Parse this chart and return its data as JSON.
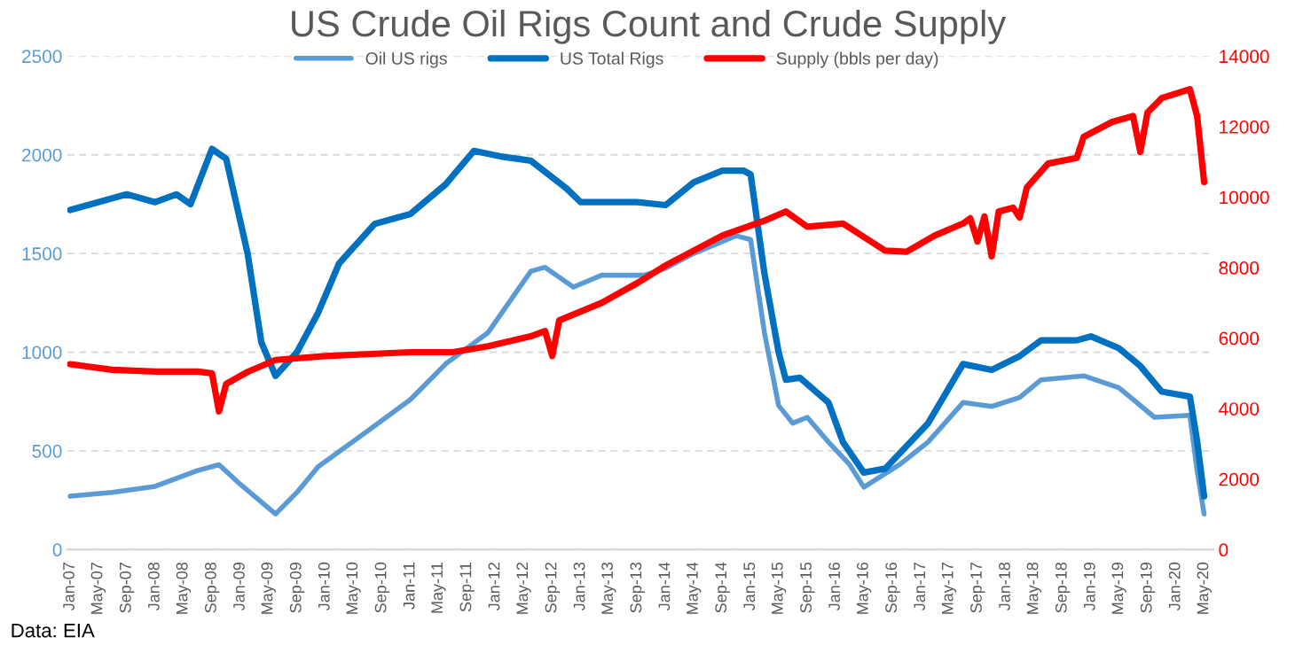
{
  "chart_data": {
    "type": "line",
    "title": "US Crude Oil Rigs Count and Crude Supply",
    "annotations": [
      "Data: EIA"
    ],
    "xlim": [
      "2006-12-20",
      "2020-06-10"
    ],
    "xticks": [
      {
        "value": "2007-01-01",
        "label": "Jan-07"
      },
      {
        "value": "2007-05-01",
        "label": "May-07"
      },
      {
        "value": "2007-09-01",
        "label": "Sep-07"
      },
      {
        "value": "2008-01-01",
        "label": "Jan-08"
      },
      {
        "value": "2008-05-01",
        "label": "May-08"
      },
      {
        "value": "2008-09-01",
        "label": "Sep-08"
      },
      {
        "value": "2009-01-01",
        "label": "Jan-09"
      },
      {
        "value": "2009-05-01",
        "label": "May-09"
      },
      {
        "value": "2009-09-01",
        "label": "Sep-09"
      },
      {
        "value": "2010-01-01",
        "label": "Jan-10"
      },
      {
        "value": "2010-05-01",
        "label": "May-10"
      },
      {
        "value": "2010-09-01",
        "label": "Sep-10"
      },
      {
        "value": "2011-01-01",
        "label": "Jan-11"
      },
      {
        "value": "2011-05-01",
        "label": "May-11"
      },
      {
        "value": "2011-09-01",
        "label": "Sep-11"
      },
      {
        "value": "2012-01-01",
        "label": "Jan-12"
      },
      {
        "value": "2012-05-01",
        "label": "May-12"
      },
      {
        "value": "2012-09-01",
        "label": "Sep-12"
      },
      {
        "value": "2013-01-01",
        "label": "Jan-13"
      },
      {
        "value": "2013-05-01",
        "label": "May-13"
      },
      {
        "value": "2013-09-01",
        "label": "Sep-13"
      },
      {
        "value": "2014-01-01",
        "label": "Jan-14"
      },
      {
        "value": "2014-05-01",
        "label": "May-14"
      },
      {
        "value": "2014-09-01",
        "label": "Sep-14"
      },
      {
        "value": "2015-01-01",
        "label": "Jan-15"
      },
      {
        "value": "2015-05-01",
        "label": "May-15"
      },
      {
        "value": "2015-09-01",
        "label": "Sep-15"
      },
      {
        "value": "2016-01-01",
        "label": "Jan-16"
      },
      {
        "value": "2016-05-01",
        "label": "May-16"
      },
      {
        "value": "2016-09-01",
        "label": "Sep-16"
      },
      {
        "value": "2017-01-01",
        "label": "Jan-17"
      },
      {
        "value": "2017-05-01",
        "label": "May-17"
      },
      {
        "value": "2017-09-01",
        "label": "Sep-17"
      },
      {
        "value": "2018-01-01",
        "label": "Jan-18"
      },
      {
        "value": "2018-05-01",
        "label": "May-18"
      },
      {
        "value": "2018-09-01",
        "label": "Sep-18"
      },
      {
        "value": "2019-01-01",
        "label": "Jan-19"
      },
      {
        "value": "2019-05-01",
        "label": "May-19"
      },
      {
        "value": "2019-09-01",
        "label": "Sep-19"
      },
      {
        "value": "2020-01-01",
        "label": "Jan-20"
      },
      {
        "value": "2020-05-01",
        "label": "May-20"
      }
    ],
    "ylim": [
      0,
      2500
    ],
    "yticks": [
      0,
      500,
      1000,
      1500,
      2000,
      2500
    ],
    "y2lim": [
      0,
      14000
    ],
    "y2ticks": [
      0,
      2000,
      4000,
      6000,
      8000,
      10000,
      12000,
      14000
    ],
    "grid": "y",
    "legend": "top",
    "marker": "none",
    "line_style": "solid",
    "series": [
      {
        "name": "Oil US rigs",
        "color": "#5b9bd5",
        "x": [
          "2007-01",
          "2007-07",
          "2008-01",
          "2008-07",
          "2008-10",
          "2009-01",
          "2009-06",
          "2009-09",
          "2009-12",
          "2010-07",
          "2011-01",
          "2011-06",
          "2011-12",
          "2012-06",
          "2012-08",
          "2012-12",
          "2013-04",
          "2013-10",
          "2014-01",
          "2014-05",
          "2014-11",
          "2015-01",
          "2015-03",
          "2015-05",
          "2015-07",
          "2015-09",
          "2015-12",
          "2016-03",
          "2016-05",
          "2016-10",
          "2017-02",
          "2017-07",
          "2017-11",
          "2018-03",
          "2018-06",
          "2018-12",
          "2019-05",
          "2019-10",
          "2020-03",
          "2020-04",
          "2020-05"
        ],
        "values": [
          270,
          290,
          320,
          400,
          430,
          330,
          180,
          290,
          420,
          600,
          760,
          940,
          1100,
          1410,
          1430,
          1330,
          1390,
          1390,
          1425,
          1500,
          1590,
          1570,
          1100,
          730,
          640,
          670,
          545,
          430,
          316,
          430,
          545,
          745,
          725,
          770,
          860,
          880,
          820,
          670,
          680,
          400,
          180
        ]
      },
      {
        "name": "US Total Rigs",
        "color": "#0070c0",
        "x": [
          "2007-01",
          "2007-05",
          "2007-09",
          "2008-01",
          "2008-04",
          "2008-06",
          "2008-09",
          "2008-11",
          "2009-02",
          "2009-04",
          "2009-06",
          "2009-09",
          "2009-12",
          "2010-03",
          "2010-08",
          "2011-01",
          "2011-06",
          "2011-10",
          "2012-02",
          "2012-06",
          "2012-11",
          "2013-01",
          "2013-05",
          "2013-09",
          "2014-01",
          "2014-05",
          "2014-09",
          "2014-12",
          "2015-01",
          "2015-03",
          "2015-05",
          "2015-06",
          "2015-08",
          "2015-12",
          "2016-02",
          "2016-05",
          "2016-08",
          "2017-02",
          "2017-07",
          "2017-11",
          "2018-03",
          "2018-06",
          "2018-11",
          "2019-01",
          "2019-05",
          "2019-08",
          "2019-11",
          "2020-03",
          "2020-04",
          "2020-05"
        ],
        "values": [
          1720,
          1760,
          1800,
          1760,
          1800,
          1750,
          2030,
          1980,
          1500,
          1050,
          880,
          1000,
          1200,
          1450,
          1650,
          1700,
          1850,
          2020,
          1990,
          1970,
          1830,
          1760,
          1760,
          1760,
          1745,
          1860,
          1920,
          1920,
          1900,
          1400,
          1000,
          860,
          870,
          745,
          545,
          390,
          410,
          640,
          940,
          910,
          980,
          1060,
          1060,
          1080,
          1020,
          930,
          800,
          775,
          550,
          270
        ]
      },
      {
        "name": "Supply (bbls per day)",
        "color": "#ff0000",
        "axis": "y2",
        "x": [
          "2007-01",
          "2007-07",
          "2008-01",
          "2008-07",
          "2008-09",
          "2008-10",
          "2008-11",
          "2009-02",
          "2009-06",
          "2010-01",
          "2011-01",
          "2011-07",
          "2011-12",
          "2012-06",
          "2012-08",
          "2012-09",
          "2012-10",
          "2013-04",
          "2013-09",
          "2014-01",
          "2014-09",
          "2015-03",
          "2015-06",
          "2015-09",
          "2016-02",
          "2016-08",
          "2016-11",
          "2017-03",
          "2017-07",
          "2017-08",
          "2017-09",
          "2017-10",
          "2017-11",
          "2017-12",
          "2018-02",
          "2018-03",
          "2018-04",
          "2018-07",
          "2018-11",
          "2018-12",
          "2019-04",
          "2019-07",
          "2019-08",
          "2019-09",
          "2019-11",
          "2020-03",
          "2020-04",
          "2020-05"
        ],
        "values": [
          5260,
          5100,
          5050,
          5050,
          5000,
          3920,
          4700,
          5040,
          5380,
          5490,
          5600,
          5600,
          5770,
          6050,
          6200,
          5490,
          6500,
          7000,
          7560,
          8060,
          8910,
          9330,
          9590,
          9160,
          9250,
          8480,
          8450,
          8910,
          9250,
          9400,
          8740,
          9450,
          8320,
          9590,
          9700,
          9420,
          10270,
          10950,
          11110,
          11710,
          12130,
          12300,
          11280,
          12400,
          12810,
          13060,
          12300,
          10430
        ]
      }
    ]
  }
}
